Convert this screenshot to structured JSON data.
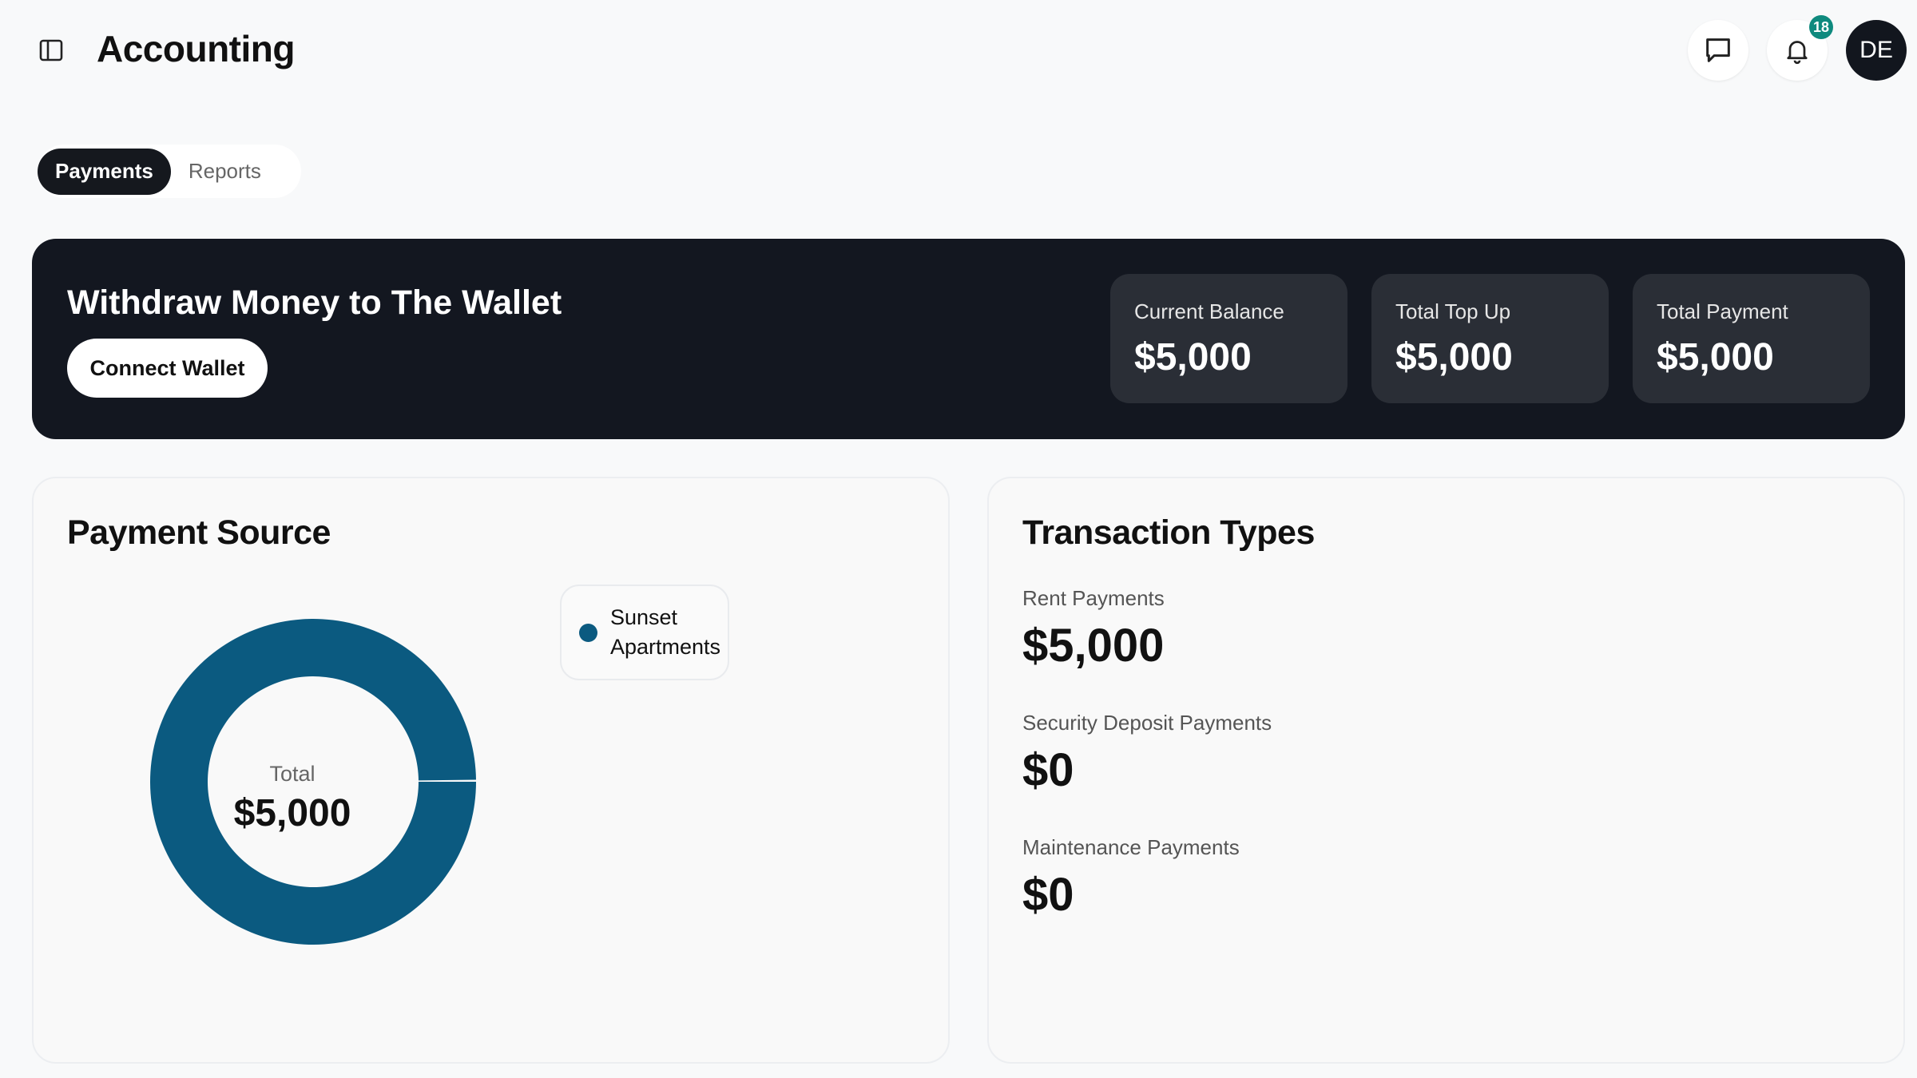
{
  "header": {
    "title": "Accounting",
    "notification_count": "18",
    "avatar_initials": "DE"
  },
  "tabs": [
    {
      "label": "Payments",
      "active": true
    },
    {
      "label": "Reports",
      "active": false
    }
  ],
  "banner": {
    "title": "Withdraw Money to The Wallet",
    "button": "Connect Wallet",
    "stats": [
      {
        "label": "Current Balance",
        "value": "$5,000"
      },
      {
        "label": "Total Top Up",
        "value": "$5,000"
      },
      {
        "label": "Total Payment",
        "value": "$5,000"
      }
    ]
  },
  "payment_source": {
    "title": "Payment Source",
    "total_label": "Total",
    "total_value": "$5,000"
  },
  "chart_data": {
    "type": "pie",
    "title": "Payment Source",
    "categories": [
      "Sunset Apartments"
    ],
    "values": [
      5000
    ],
    "colors": [
      "#0b5a80"
    ],
    "legend": "right"
  },
  "transaction_types": {
    "title": "Transaction Types",
    "items": [
      {
        "label": "Rent Payments",
        "value": "$5,000"
      },
      {
        "label": "Security Deposit Payments",
        "value": "$0"
      },
      {
        "label": "Maintenance Payments",
        "value": "$0"
      }
    ]
  },
  "colors": {
    "accent": "#0b5a80",
    "badge": "#0f8a7e",
    "dark": "#131720"
  }
}
